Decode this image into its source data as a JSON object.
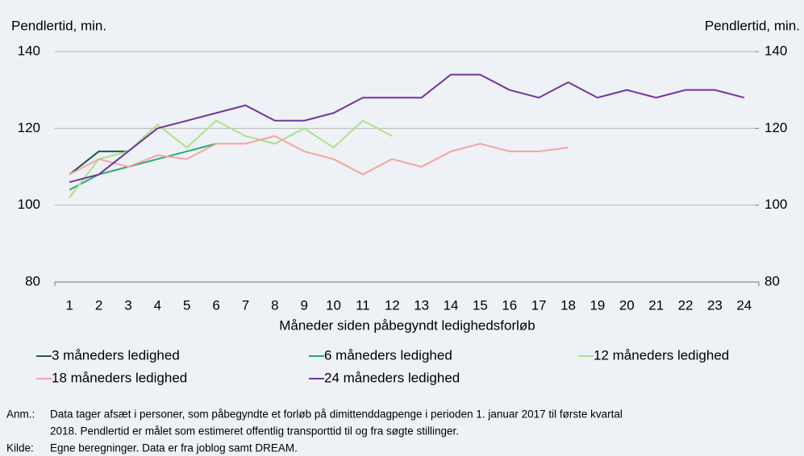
{
  "chart_data": {
    "type": "line",
    "y_label": "Pendlertid, min.",
    "y2_label": "Pendlertid, min.",
    "x_label": "Måneder siden påbegyndt ledighedsforløb",
    "categories": [
      1,
      2,
      3,
      4,
      5,
      6,
      7,
      8,
      9,
      10,
      11,
      12,
      13,
      14,
      15,
      16,
      17,
      18,
      19,
      20,
      21,
      22,
      23,
      24
    ],
    "ylim": [
      80,
      140
    ],
    "yticks": [
      80,
      100,
      120,
      140
    ],
    "y2lim": [
      80,
      140
    ],
    "y2ticks": [
      80,
      100,
      120,
      140
    ],
    "grid": true,
    "legend": "bottom",
    "series": [
      {
        "name": "3 måneders ledighed",
        "color": "#1e5a46",
        "values": [
          108,
          114,
          114,
          null,
          null,
          null,
          null,
          null,
          null,
          null,
          null,
          null,
          null,
          null,
          null,
          null,
          null,
          null,
          null,
          null,
          null,
          null,
          null,
          null
        ]
      },
      {
        "name": "6 måneders ledighed",
        "color": "#1fae6e",
        "values": [
          104,
          108,
          110,
          112,
          114,
          116,
          null,
          null,
          null,
          null,
          null,
          null,
          null,
          null,
          null,
          null,
          null,
          null,
          null,
          null,
          null,
          null,
          null,
          null
        ]
      },
      {
        "name": "12 måneders ledighed",
        "color": "#a9e387",
        "values": [
          102,
          112,
          114,
          121,
          115,
          122,
          118,
          116,
          120,
          115,
          122,
          118,
          null,
          null,
          null,
          null,
          null,
          null,
          null,
          null,
          null,
          null,
          null,
          null
        ]
      },
      {
        "name": "18 måneders ledighed",
        "color": "#f6a3a3",
        "values": [
          108,
          112,
          110,
          113,
          112,
          116,
          116,
          118,
          114,
          112,
          108,
          112,
          110,
          114,
          116,
          114,
          114,
          115,
          null,
          null,
          null,
          null,
          null,
          null
        ]
      },
      {
        "name": "24 måneders ledighed",
        "color": "#7433a0",
        "values": [
          106,
          108,
          114,
          120,
          122,
          124,
          126,
          122,
          122,
          124,
          128,
          128,
          128,
          134,
          134,
          130,
          128,
          132,
          128,
          130,
          128,
          130,
          130,
          128
        ]
      }
    ],
    "notes": [
      {
        "label": "Anm.:",
        "lines": [
          "Data tager afsæt i personer, som påbegyndte et forløb på dimittenddagpenge  i perioden 1. januar 2017 til første kvartal",
          "2018. Pendlertid  er målet som estimeret offentlig transporttid til og fra søgte stillinger."
        ]
      },
      {
        "label": "Kilde:",
        "lines": [
          "Egne beregninger. Data er fra joblog samt DREAM."
        ]
      }
    ]
  }
}
